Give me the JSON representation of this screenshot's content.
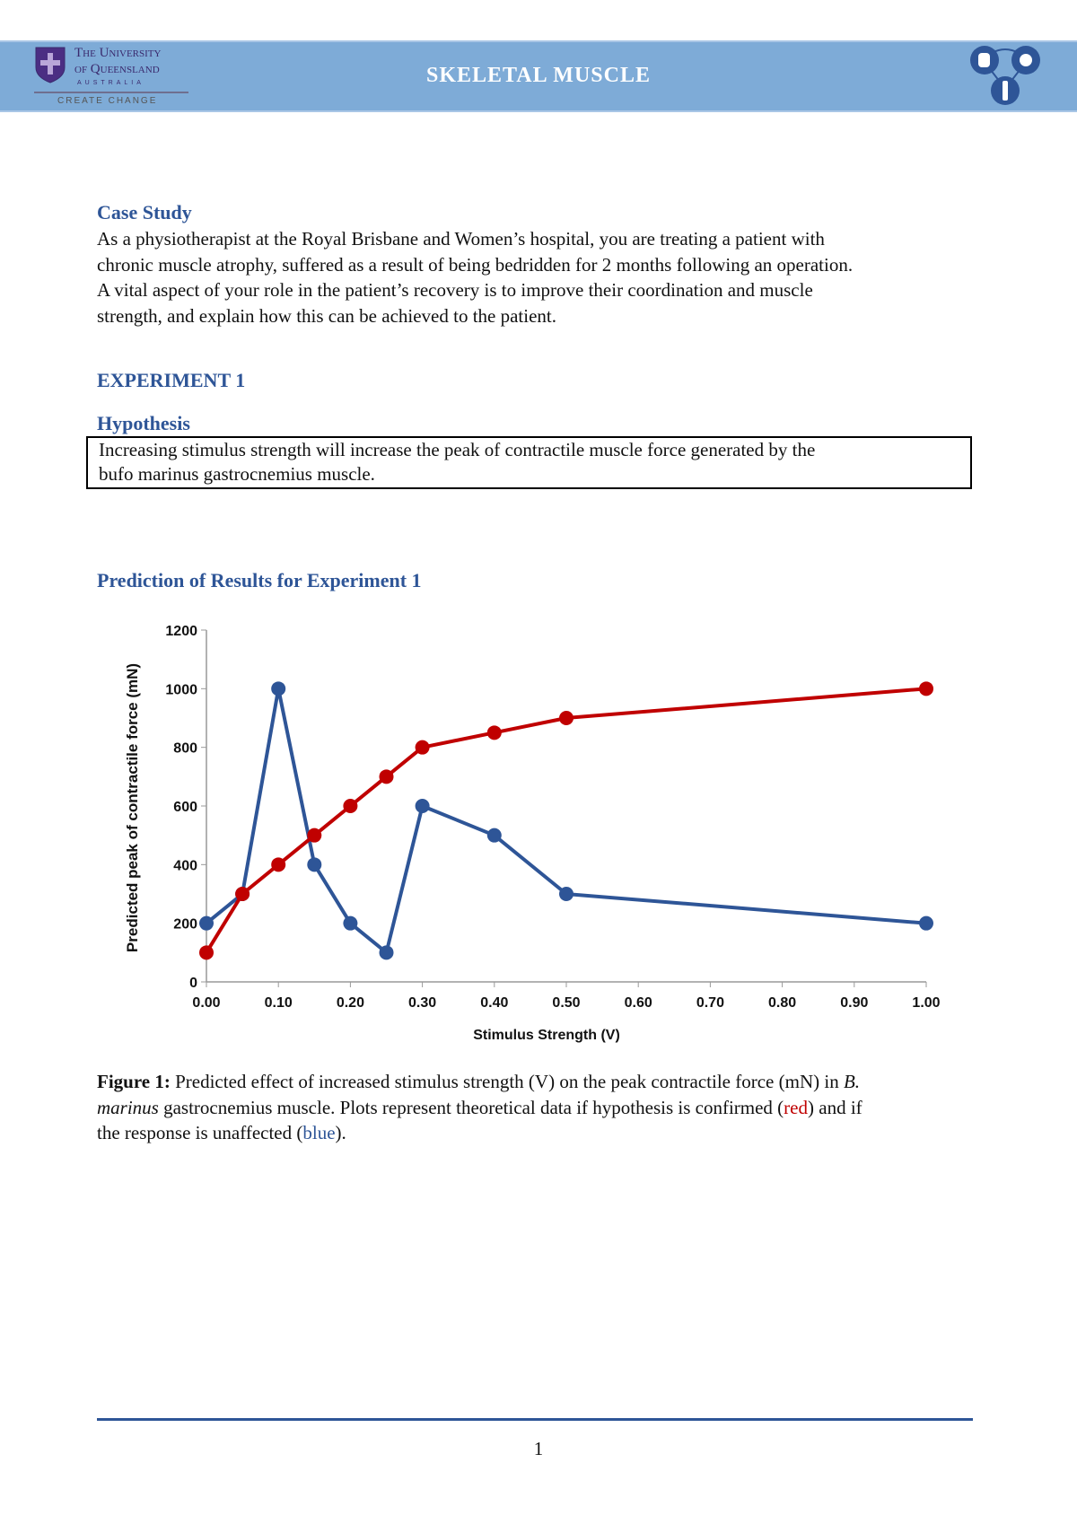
{
  "header": {
    "logo": {
      "line1": "The University",
      "line2": "of Queensland",
      "line3": "AUSTRALIA",
      "tagline": "CREATE CHANGE"
    },
    "title": "SKELETAL MUSCLE",
    "icons": [
      "hand-icon",
      "brain-icon",
      "person-icon"
    ],
    "color": "#7eabd7"
  },
  "case_study": {
    "heading": "Case Study",
    "lines": [
      "As a physiotherapist at the Royal Brisbane and Women’s hospital, you are treating a patient with",
      "chronic muscle atrophy, suffered as a result of being bedridden for 2 months following an operation.",
      "A vital aspect of your role in the patient’s recovery is to improve their coordination and muscle",
      "strength, and explain how this can be achieved to the patient."
    ]
  },
  "experiment": {
    "heading": "EXPERIMENT 1",
    "hypothesis_heading": "Hypothesis",
    "hypothesis_lines": [
      "Increasing stimulus strength will increase the peak of contractile muscle force generated by the",
      "bufo marinus gastrocnemius muscle."
    ]
  },
  "prediction_heading": "Prediction of Results for Experiment 1",
  "chart_data": {
    "type": "line",
    "xlabel": "Stimulus Strength (V)",
    "ylabel": "Predicted peak of contractile force  (mN)",
    "xlim": [
      0,
      1
    ],
    "ylim": [
      0,
      1200
    ],
    "xticks": [
      "0.00",
      "0.10",
      "0.20",
      "0.30",
      "0.40",
      "0.50",
      "0.60",
      "0.70",
      "0.80",
      "0.90",
      "1.00"
    ],
    "yticks": [
      "0",
      "200",
      "400",
      "600",
      "800",
      "1000",
      "1200"
    ],
    "grid": false,
    "series": [
      {
        "color": "#2e5597",
        "x": [
          0,
          0.05,
          0.1,
          0.15,
          0.2,
          0.25,
          0.3,
          0.4,
          0.5,
          1.0
        ],
        "y": [
          200,
          300,
          1000,
          400,
          200,
          100,
          600,
          500,
          300,
          200
        ]
      },
      {
        "color": "#c00000",
        "x": [
          0,
          0.05,
          0.1,
          0.15,
          0.2,
          0.25,
          0.3,
          0.4,
          0.5,
          1.0
        ],
        "y": [
          100,
          300,
          400,
          500,
          600,
          700,
          800,
          850,
          900,
          1000
        ]
      }
    ]
  },
  "caption": {
    "label": "Figure 1:",
    "l1a": " Predicted effect of increased stimulus strength (V) on the peak contractile force (mN) in ",
    "l1b": "B.",
    "l2a": "marinus",
    "l2b": " gastrocnemius muscle. Plots represent theoretical data if hypothesis is confirmed (",
    "red": "red",
    "l2c": ") and if",
    "l3a": "the response is unaffected (",
    "blue": "blue",
    "l3b": ")."
  },
  "page_number": "1"
}
